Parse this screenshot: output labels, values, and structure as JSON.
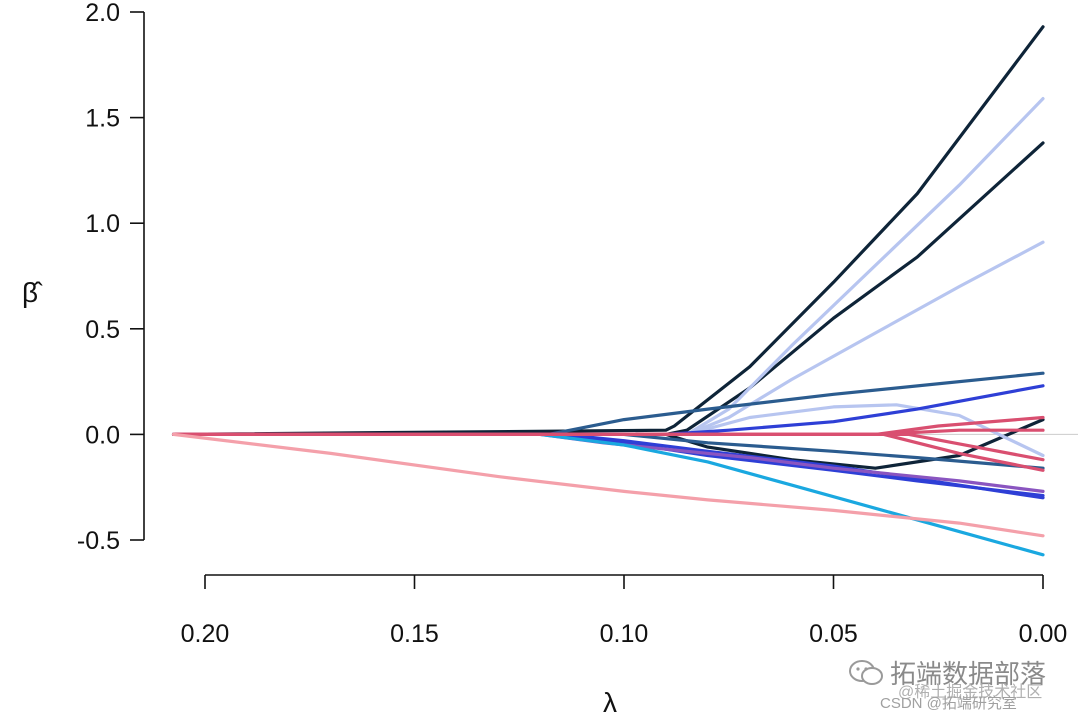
{
  "chart_data": {
    "type": "line",
    "xlabel": "λ",
    "ylabel": "β̂",
    "x_reversed": true,
    "xlim": [
      0.2075,
      0.0
    ],
    "ylim": [
      -0.5,
      2.0
    ],
    "xticks": [
      "0.20",
      "0.15",
      "0.10",
      "0.05",
      "0.00"
    ],
    "yticks": [
      "2.0",
      "1.5",
      "1.0",
      "0.5",
      "0.0",
      "-0.5"
    ],
    "zero_line": true,
    "grid": false,
    "series": [
      {
        "color": "#0e2438",
        "points": [
          [
            0.2075,
            0
          ],
          [
            0.09,
            0.02
          ],
          [
            0.088,
            0.04
          ],
          [
            0.07,
            0.32
          ],
          [
            0.05,
            0.72
          ],
          [
            0.03,
            1.14
          ],
          [
            0.0,
            1.93
          ]
        ]
      },
      {
        "color": "#0e2438",
        "points": [
          [
            0.2075,
            0
          ],
          [
            0.09,
            0
          ],
          [
            0.085,
            0.02
          ],
          [
            0.07,
            0.22
          ],
          [
            0.05,
            0.55
          ],
          [
            0.03,
            0.84
          ],
          [
            0.0,
            1.38
          ]
        ]
      },
      {
        "color": "#0e2438",
        "points": [
          [
            0.2075,
            0
          ],
          [
            0.09,
            0
          ],
          [
            0.08,
            -0.06
          ],
          [
            0.06,
            -0.12
          ],
          [
            0.04,
            -0.16
          ],
          [
            0.02,
            -0.1
          ],
          [
            0.0,
            0.07
          ]
        ]
      },
      {
        "color": "#b7c5f0",
        "points": [
          [
            0.2075,
            0
          ],
          [
            0.085,
            0
          ],
          [
            0.075,
            0.12
          ],
          [
            0.06,
            0.42
          ],
          [
            0.04,
            0.8
          ],
          [
            0.02,
            1.18
          ],
          [
            0.0,
            1.59
          ]
        ]
      },
      {
        "color": "#b7c5f0",
        "points": [
          [
            0.2075,
            0
          ],
          [
            0.085,
            0
          ],
          [
            0.075,
            0.08
          ],
          [
            0.06,
            0.26
          ],
          [
            0.04,
            0.48
          ],
          [
            0.02,
            0.7
          ],
          [
            0.0,
            0.91
          ]
        ]
      },
      {
        "color": "#b7c5f0",
        "points": [
          [
            0.2075,
            0
          ],
          [
            0.085,
            0
          ],
          [
            0.07,
            0.08
          ],
          [
            0.05,
            0.13
          ],
          [
            0.035,
            0.14
          ],
          [
            0.02,
            0.09
          ],
          [
            0.0,
            -0.1
          ]
        ]
      },
      {
        "color": "#2b5c8f",
        "points": [
          [
            0.2075,
            0
          ],
          [
            0.118,
            0
          ],
          [
            0.1,
            0.07
          ],
          [
            0.08,
            0.12
          ],
          [
            0.05,
            0.19
          ],
          [
            0.0,
            0.29
          ]
        ]
      },
      {
        "color": "#2b5c8f",
        "points": [
          [
            0.2075,
            0
          ],
          [
            0.1,
            0
          ],
          [
            0.08,
            -0.04
          ],
          [
            0.05,
            -0.08
          ],
          [
            0.03,
            -0.11
          ],
          [
            0.0,
            -0.16
          ]
        ]
      },
      {
        "color": "#2e3fd6",
        "points": [
          [
            0.2075,
            0
          ],
          [
            0.09,
            0
          ],
          [
            0.075,
            0.02
          ],
          [
            0.05,
            0.06
          ],
          [
            0.03,
            0.12
          ],
          [
            0.0,
            0.23
          ]
        ]
      },
      {
        "color": "#2e3fd6",
        "points": [
          [
            0.2075,
            0
          ],
          [
            0.115,
            0
          ],
          [
            0.1,
            -0.04
          ],
          [
            0.08,
            -0.1
          ],
          [
            0.05,
            -0.17
          ],
          [
            0.03,
            -0.22
          ],
          [
            0.0,
            -0.29
          ]
        ]
      },
      {
        "color": "#2e3fd6",
        "points": [
          [
            0.2075,
            0
          ],
          [
            0.115,
            0
          ],
          [
            0.1,
            -0.03
          ],
          [
            0.08,
            -0.08
          ],
          [
            0.05,
            -0.15
          ],
          [
            0.03,
            -0.21
          ],
          [
            0.0,
            -0.3
          ]
        ]
      },
      {
        "color": "#8a55c0",
        "points": [
          [
            0.2075,
            0
          ],
          [
            0.12,
            0
          ],
          [
            0.105,
            -0.04
          ],
          [
            0.09,
            -0.07
          ],
          [
            0.07,
            -0.11
          ],
          [
            0.05,
            -0.16
          ],
          [
            0.02,
            -0.22
          ],
          [
            0.0,
            -0.27
          ]
        ]
      },
      {
        "color": "#1aa8e0",
        "points": [
          [
            0.2075,
            0
          ],
          [
            0.12,
            0
          ],
          [
            0.1,
            -0.05
          ],
          [
            0.08,
            -0.13
          ],
          [
            0.06,
            -0.24
          ],
          [
            0.04,
            -0.35
          ],
          [
            0.02,
            -0.46
          ],
          [
            0.0,
            -0.57
          ]
        ]
      },
      {
        "color": "#d94f70",
        "points": [
          [
            0.2075,
            0
          ],
          [
            0.04,
            0
          ],
          [
            0.025,
            0.04
          ],
          [
            0.0,
            0.08
          ]
        ]
      },
      {
        "color": "#d94f70",
        "points": [
          [
            0.2075,
            0
          ],
          [
            0.04,
            0
          ],
          [
            0.02,
            0.02
          ],
          [
            0.0,
            0.02
          ]
        ]
      },
      {
        "color": "#d94f70",
        "points": [
          [
            0.2075,
            0
          ],
          [
            0.038,
            0
          ],
          [
            0.02,
            -0.09
          ],
          [
            0.0,
            -0.17
          ]
        ]
      },
      {
        "color": "#d94f70",
        "points": [
          [
            0.2075,
            0
          ],
          [
            0.032,
            0
          ],
          [
            0.016,
            -0.06
          ],
          [
            0.0,
            -0.12
          ]
        ]
      },
      {
        "color": "#f4a0aa",
        "points": [
          [
            0.2075,
            0
          ],
          [
            0.17,
            -0.09
          ],
          [
            0.13,
            -0.2
          ],
          [
            0.1,
            -0.27
          ],
          [
            0.08,
            -0.31
          ],
          [
            0.05,
            -0.36
          ],
          [
            0.02,
            -0.42
          ],
          [
            0.0,
            -0.48
          ]
        ]
      }
    ]
  },
  "watermark": {
    "main": "拓端数据部落",
    "line2": "@稀土掘金技术社区",
    "line3": "CSDN @拓端研究室"
  }
}
